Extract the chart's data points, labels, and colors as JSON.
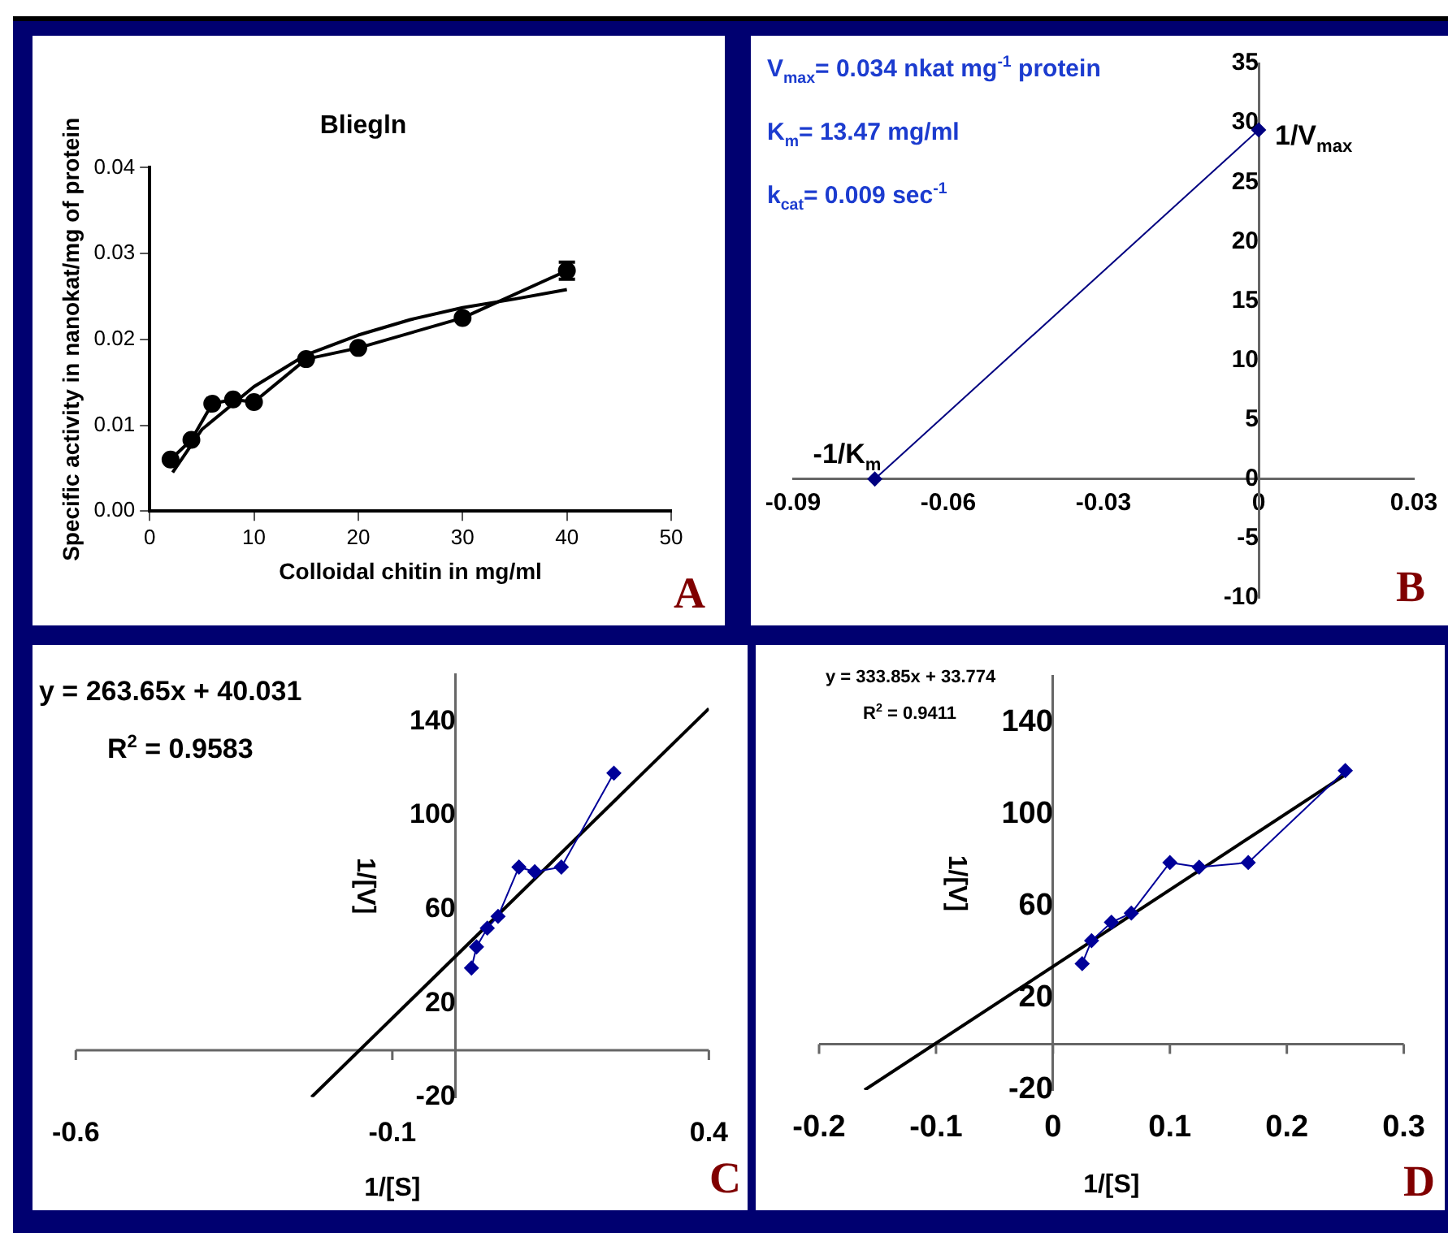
{
  "chart_data": [
    {
      "type": "line",
      "title": "Bliegln",
      "xlabel": "Colloidal chitin in mg/ml",
      "ylabel": "Specific activity in nanokat/mg of protein",
      "xlim": [
        0,
        50
      ],
      "xticks": [
        0,
        10,
        20,
        30,
        40,
        50
      ],
      "ylim": [
        0,
        0.04
      ],
      "yticks": [
        {
          "value": 0,
          "label": "0.00"
        },
        {
          "value": 0.01,
          "label": "0.01"
        },
        {
          "value": 0.02,
          "label": "0.02"
        },
        {
          "value": 0.03,
          "label": "0.03"
        },
        {
          "value": 0.04,
          "label": "0.04"
        }
      ],
      "series": [
        {
          "type": "line",
          "color": "#000000",
          "marker": "circle",
          "x": [
            2,
            4,
            6,
            8,
            10,
            15,
            20,
            30,
            40
          ],
          "values": [
            0.006,
            0.0083,
            0.0125,
            0.013,
            0.0127,
            0.0177,
            0.019,
            0.0225,
            0.028
          ],
          "errors": [
            null,
            null,
            null,
            null,
            null,
            null,
            null,
            null,
            0.001
          ]
        },
        {
          "type": "line",
          "color": "#000000",
          "marker": "none",
          "x": [
            2.2,
            5,
            10,
            15,
            20,
            25,
            30,
            35,
            40
          ],
          "values": [
            0.0045,
            0.0095,
            0.0145,
            0.0182,
            0.0205,
            0.0223,
            0.0237,
            0.0247,
            0.0258
          ]
        }
      ],
      "annotations": [
        "A"
      ]
    },
    {
      "type": "line",
      "xlim": [
        -0.09,
        0.03
      ],
      "xticks": [
        -0.09,
        -0.06,
        -0.03,
        0,
        0.03
      ],
      "ylim": [
        -10,
        35
      ],
      "yticks": [
        -10,
        -5,
        0,
        5,
        10,
        15,
        20,
        25,
        30,
        35
      ],
      "series": [
        {
          "type": "line",
          "color": "#000080",
          "marker": "diamond",
          "x": [
            -0.0742,
            0
          ],
          "values": [
            0,
            29.4
          ]
        }
      ],
      "annotations": [
        {
          "text": "-1/K$_{m}$",
          "x": -0.0742,
          "y": 0
        },
        {
          "text": "1/V$_{max}$",
          "x": 0,
          "y": 29.4
        },
        "V$_{max}$= 0.034 nkat mg$^{-1}$ protein",
        "K$_{m}$= 13.47 mg/ml",
        "k$_{cat}$= 0.009 sec$^{-1}$",
        "B"
      ]
    },
    {
      "type": "line",
      "xlabel": "1/[S]",
      "ylabel": "1/[V]",
      "xlim": [
        -0.6,
        0.4
      ],
      "xticks": [
        -0.6,
        -0.1,
        0.4
      ],
      "ylim": [
        -20,
        160
      ],
      "yticks": [
        -20,
        20,
        60,
        100,
        140
      ],
      "series": [
        {
          "type": "line",
          "color": "#000099",
          "marker": "diamond",
          "x": [
            0.025,
            0.033,
            0.05,
            0.067,
            0.1,
            0.125,
            0.167,
            0.25
          ],
          "values": [
            35,
            44,
            52,
            57,
            78,
            76,
            78,
            118
          ]
        },
        {
          "type": "line",
          "color": "#000000",
          "marker": "none",
          "x": [
            -0.2277,
            0.4
          ],
          "values": [
            -20,
            145.5
          ]
        }
      ],
      "annotations": [
        "y = 263.65x + 40.031",
        "R$^{2}$ = 0.9583",
        "C"
      ]
    },
    {
      "type": "line",
      "xlabel": "1/[S]",
      "ylabel": "1/[V]",
      "xlim": [
        -0.2,
        0.3
      ],
      "xticks": [
        -0.2,
        -0.1,
        0,
        0.1,
        0.2,
        0.3
      ],
      "ylim": [
        -20,
        160
      ],
      "yticks": [
        -20,
        20,
        60,
        100,
        140
      ],
      "series": [
        {
          "type": "line",
          "color": "#000099",
          "marker": "diamond",
          "x": [
            0.025,
            0.033,
            0.05,
            0.067,
            0.1,
            0.125,
            0.167,
            0.25
          ],
          "values": [
            35,
            45,
            53,
            57,
            79,
            77,
            79,
            119
          ]
        },
        {
          "type": "line",
          "color": "#000000",
          "marker": "none",
          "x": [
            -0.1611,
            0.25
          ],
          "values": [
            -20,
            117.2
          ]
        }
      ],
      "annotations": [
        "y = 333.85x + 33.774",
        "R$^{2}$ = 0.9411",
        "D"
      ]
    }
  ]
}
